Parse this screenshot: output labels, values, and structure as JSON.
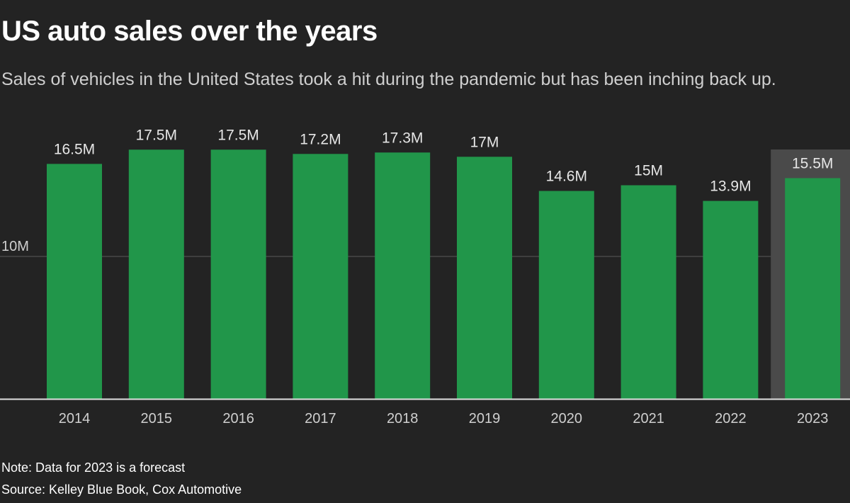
{
  "title": "US auto sales over the years",
  "subtitle": "Sales of vehicles in the United States took a hit during the pandemic but has been inching back up.",
  "note": "Note: Data for 2023 is a forecast",
  "source": "Source: Kelley Blue Book, Cox Automotive",
  "chart_data": {
    "type": "bar",
    "categories": [
      "2014",
      "2015",
      "2016",
      "2017",
      "2018",
      "2019",
      "2020",
      "2021",
      "2022",
      "2023"
    ],
    "values": [
      16.5,
      17.5,
      17.5,
      17.2,
      17.3,
      17.0,
      14.6,
      15.0,
      13.9,
      15.5
    ],
    "labels": [
      "16.5M",
      "17.5M",
      "17.5M",
      "17.2M",
      "17.3M",
      "17M",
      "14.6M",
      "15M",
      "13.9M",
      "15.5M"
    ],
    "unit": "millions of vehicles",
    "yticks": [
      {
        "value": 10,
        "label": "10M"
      }
    ],
    "ylim": [
      0,
      20
    ],
    "grid": true,
    "highlighted_category": "2023",
    "colors": {
      "bar": "#21964a",
      "highlight": "#4a4a4a",
      "background": "#232323",
      "grid": "#5a5a5a"
    }
  }
}
